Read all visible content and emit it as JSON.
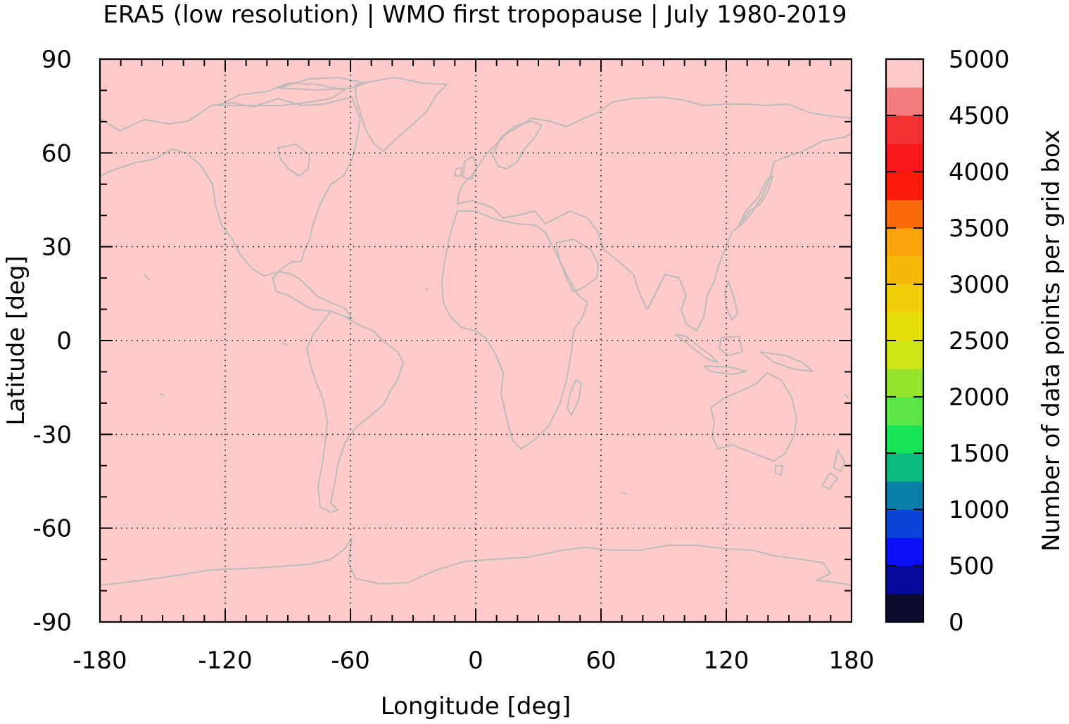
{
  "chart_data": {
    "type": "heatmap",
    "title": "ERA5 (low resolution) | WMO first tropopause | July 1980-2019",
    "xlabel": "Longitude [deg]",
    "ylabel": "Latitude [deg]",
    "xlim": [
      -180,
      180
    ],
    "ylim": [
      -90,
      90
    ],
    "x_ticks": [
      -180,
      -120,
      -60,
      0,
      60,
      120,
      180
    ],
    "x_tick_labels": [
      "-180",
      "-120",
      "-60",
      "0",
      "60",
      "120",
      "180"
    ],
    "y_ticks": [
      90,
      60,
      30,
      0,
      -30,
      -60,
      -90
    ],
    "y_tick_labels": [
      "90",
      "60",
      "30",
      "0",
      "-30",
      "-60",
      "-90"
    ],
    "grid": true,
    "field_value": 5000,
    "field_description_value": "uniform value at the top of the color scale over the whole domain",
    "colorbar": {
      "label": "Number of data points per grid box",
      "range": [
        0,
        5000
      ],
      "ticks": [
        0,
        500,
        1000,
        1500,
        2000,
        2500,
        3000,
        3500,
        4000,
        4500,
        5000
      ],
      "tick_labels": [
        "0",
        "500",
        "1000",
        "1500",
        "2000",
        "2500",
        "3000",
        "3500",
        "4000",
        "4500",
        "5000"
      ],
      "levels": [
        {
          "from": 0,
          "to": 250,
          "color": "#0b0b2e"
        },
        {
          "from": 250,
          "to": 500,
          "color": "#050a9c"
        },
        {
          "from": 500,
          "to": 750,
          "color": "#0a12f5"
        },
        {
          "from": 750,
          "to": 1000,
          "color": "#0a45d8"
        },
        {
          "from": 1000,
          "to": 1250,
          "color": "#0a80a8"
        },
        {
          "from": 1250,
          "to": 1500,
          "color": "#0abb80"
        },
        {
          "from": 1500,
          "to": 1750,
          "color": "#16e356"
        },
        {
          "from": 1750,
          "to": 2000,
          "color": "#5ce544"
        },
        {
          "from": 2000,
          "to": 2250,
          "color": "#98e32c"
        },
        {
          "from": 2250,
          "to": 2500,
          "color": "#cde617"
        },
        {
          "from": 2500,
          "to": 2750,
          "color": "#e6dd0a"
        },
        {
          "from": 2750,
          "to": 3000,
          "color": "#f2ce0a"
        },
        {
          "from": 3000,
          "to": 3250,
          "color": "#f6b90a"
        },
        {
          "from": 3250,
          "to": 3500,
          "color": "#f8a40a"
        },
        {
          "from": 3500,
          "to": 3750,
          "color": "#fb6a0a"
        },
        {
          "from": 3750,
          "to": 4000,
          "color": "#fa1a0a"
        },
        {
          "from": 4000,
          "to": 4250,
          "color": "#f7171c"
        },
        {
          "from": 4250,
          "to": 4500,
          "color": "#f23232"
        },
        {
          "from": 4500,
          "to": 4750,
          "color": "#f57c7c"
        },
        {
          "from": 4750,
          "to": 5000,
          "color": "#ffcaca"
        }
      ]
    },
    "colors": {
      "field": "#ffcaca",
      "coastline": "#bbbbbb",
      "grid": "#000000",
      "axes": "#000000"
    }
  }
}
